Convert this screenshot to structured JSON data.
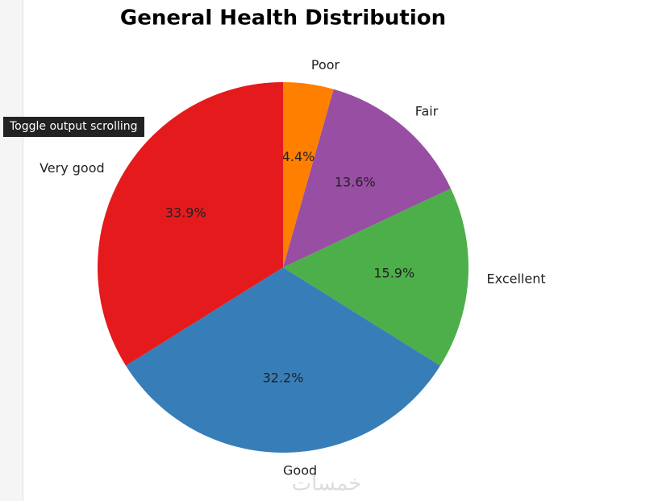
{
  "chart_data": {
    "type": "pie",
    "title": "General Health Distribution",
    "categories": [
      "Poor",
      "Fair",
      "Excellent",
      "Good",
      "Very good"
    ],
    "values": [
      4.4,
      13.6,
      15.9,
      32.2,
      33.9
    ],
    "value_labels": [
      "4.4%",
      "13.6%",
      "15.9%",
      "32.2%",
      "33.9%"
    ],
    "colors": [
      "#ff7f00",
      "#984ea3",
      "#4daf4a",
      "#377eb8",
      "#e41a1c"
    ]
  },
  "tooltip": "Toggle output scrolling",
  "watermark": "خمسات"
}
